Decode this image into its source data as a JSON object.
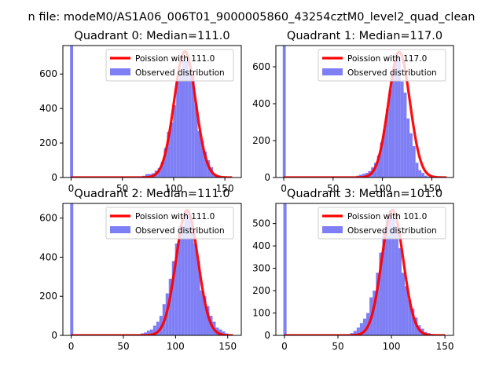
{
  "figure": {
    "suptitle": "n file: modeM0/AS1A06_006T01_9000005860_43254cztM0_level2_quad_clean"
  },
  "colors": {
    "hist": "#7f7ff5",
    "fit": "#ff0000",
    "axis": "#000000"
  },
  "chart_data": [
    {
      "type": "bar+line",
      "title": "Quadrant 0: Median=111.0",
      "median": 111.0,
      "xlim": [
        -8,
        166
      ],
      "ylim": [
        0,
        765
      ],
      "xticks": [
        0,
        50,
        100,
        150
      ],
      "yticks": [
        0,
        200,
        400,
        600
      ],
      "legend": [
        "Poission with 111.0",
        "Observed distribution"
      ],
      "legend_placement": "upper right",
      "hist_bins": [
        0.5,
        3.5,
        68,
        71,
        74,
        77,
        80,
        83,
        86,
        89,
        92,
        95,
        98,
        101,
        104,
        107,
        110,
        113,
        116,
        119,
        122,
        125,
        128,
        131,
        134,
        137,
        140,
        143,
        146
      ],
      "hist_counts": [
        1100,
        0,
        5,
        10,
        20,
        20,
        25,
        40,
        55,
        90,
        170,
        265,
        320,
        420,
        570,
        600,
        700,
        680,
        610,
        600,
        425,
        270,
        210,
        150,
        100,
        60,
        20,
        10,
        5
      ],
      "fit_mean": 111.0,
      "fit_peak": 730,
      "fit_xrange": [
        0,
        157
      ]
    },
    {
      "type": "bar+line",
      "title": "Quadrant 1: Median=117.0",
      "median": 117.0,
      "xlim": [
        -8,
        172
      ],
      "ylim": [
        0,
        715
      ],
      "xticks": [
        0,
        50,
        100,
        150
      ],
      "yticks": [
        0,
        200,
        400,
        600
      ],
      "legend": [
        "Poission with 117.0",
        "Observed distribution"
      ],
      "legend_placement": "upper right",
      "hist_bins": [
        0.5,
        3.5,
        75,
        78,
        81,
        84,
        87,
        90,
        93,
        96,
        99,
        102,
        105,
        108,
        111,
        114,
        117,
        120,
        123,
        126,
        129,
        132,
        135,
        138,
        141,
        144,
        147,
        150
      ],
      "hist_counts": [
        1100,
        0,
        10,
        15,
        20,
        25,
        35,
        55,
        80,
        120,
        190,
        260,
        370,
        475,
        580,
        670,
        650,
        520,
        460,
        320,
        240,
        170,
        80,
        40,
        25,
        10,
        5,
        0
      ],
      "fit_mean": 117.0,
      "fit_peak": 680,
      "fit_xrange": [
        0,
        165
      ]
    },
    {
      "type": "bar+line",
      "title": "Quadrant 2: Median=111.0",
      "median": 111.0,
      "xlim": [
        -8,
        163
      ],
      "ylim": [
        0,
        675
      ],
      "xticks": [
        0,
        50,
        100,
        150
      ],
      "yticks": [
        0,
        200,
        400,
        600
      ],
      "legend": [
        "Poission with 111.0",
        "Observed distribution"
      ],
      "legend_placement": "upper right",
      "hist_bins": [
        0.5,
        3.5,
        65,
        68,
        71,
        74,
        77,
        80,
        83,
        86,
        89,
        92,
        95,
        98,
        101,
        104,
        107,
        110,
        113,
        116,
        119,
        122,
        125,
        128,
        131,
        134,
        137,
        140,
        143,
        146,
        149,
        152
      ],
      "hist_counts": [
        1100,
        0,
        5,
        10,
        15,
        25,
        30,
        50,
        70,
        100,
        160,
        215,
        290,
        380,
        470,
        560,
        560,
        640,
        620,
        560,
        470,
        380,
        230,
        200,
        150,
        100,
        70,
        40,
        30,
        20,
        10,
        5
      ],
      "fit_mean": 111.0,
      "fit_peak": 640,
      "fit_xrange": [
        0,
        155
      ]
    },
    {
      "type": "bar+line",
      "title": "Quadrant 3: Median=101.0",
      "median": 101.0,
      "xlim": [
        -8,
        158
      ],
      "ylim": [
        0,
        590
      ],
      "xticks": [
        0,
        50,
        100,
        150
      ],
      "yticks": [
        0,
        100,
        200,
        300,
        400,
        500
      ],
      "legend": [
        "Poission with 101.0",
        "Observed distribution"
      ],
      "legend_placement": "upper right",
      "hist_bins": [
        0.5,
        3.5,
        60,
        63,
        66,
        69,
        72,
        75,
        78,
        81,
        84,
        87,
        90,
        93,
        96,
        99,
        102,
        105,
        108,
        111,
        114,
        117,
        120,
        123,
        126,
        129,
        132,
        135,
        138,
        141
      ],
      "hist_counts": [
        1100,
        0,
        5,
        10,
        20,
        35,
        55,
        75,
        100,
        170,
        200,
        280,
        370,
        470,
        520,
        560,
        520,
        490,
        390,
        280,
        220,
        160,
        120,
        80,
        45,
        30,
        15,
        10,
        5,
        0
      ],
      "fit_mean": 101.0,
      "fit_peak": 560,
      "fit_xrange": [
        0,
        150
      ]
    }
  ]
}
